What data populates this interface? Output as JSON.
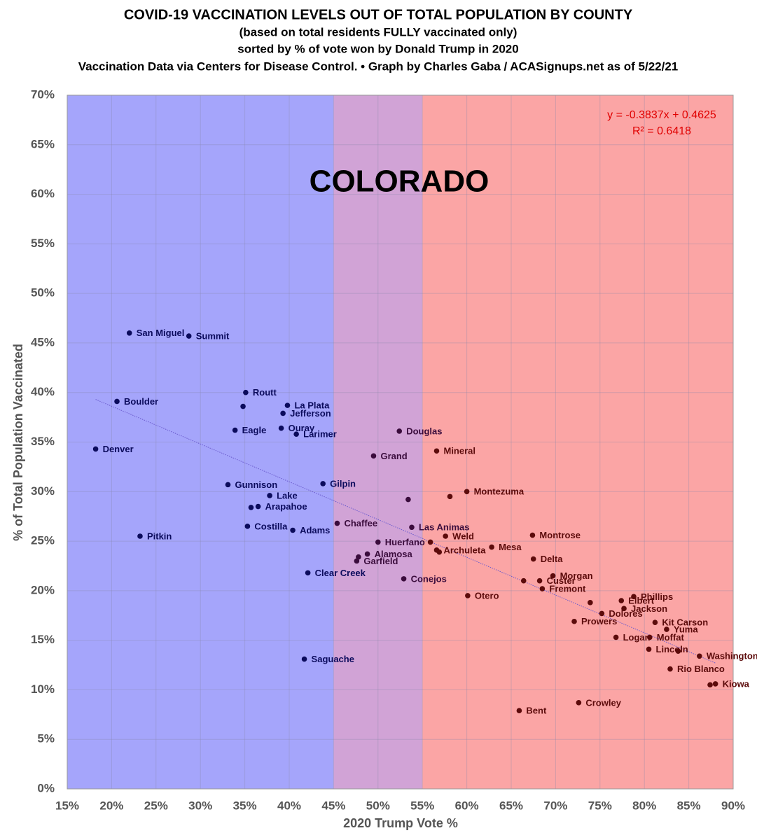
{
  "chart_data": {
    "type": "scatter",
    "title": "COVID-19 VACCINATION LEVELS OUT OF TOTAL POPULATION BY COUNTY",
    "subtitles": [
      "(based on total residents FULLY vaccinated only)",
      "sorted by % of vote won by Donald Trump in 2020",
      "Vaccination Data via Centers for Disease Control. • Graph by Charles Gaba / ACASignups.net as of 5/22/21"
    ],
    "annotation": "COLORADO",
    "equation": [
      "y = -0.3837x + 0.4625",
      "R² = 0.6418"
    ],
    "xlabel": "2020 Trump Vote %",
    "ylabel": "% of Total Population Vaccinated",
    "xlim": [
      15,
      90
    ],
    "ylim": [
      0,
      70
    ],
    "xticks": [
      {
        "value": 15,
        "label": "15%"
      },
      {
        "value": 20,
        "label": "20%"
      },
      {
        "value": 25,
        "label": "25%"
      },
      {
        "value": 30,
        "label": "30%"
      },
      {
        "value": 35,
        "label": "35%"
      },
      {
        "value": 40,
        "label": "40%"
      },
      {
        "value": 45,
        "label": "45%"
      },
      {
        "value": 50,
        "label": "50%"
      },
      {
        "value": 55,
        "label": "55%"
      },
      {
        "value": 60,
        "label": "60%"
      },
      {
        "value": 65,
        "label": "65%"
      },
      {
        "value": 70,
        "label": "70%"
      },
      {
        "value": 75,
        "label": "75%"
      },
      {
        "value": 80,
        "label": "80%"
      },
      {
        "value": 85,
        "label": "85%"
      },
      {
        "value": 90,
        "label": "90%"
      }
    ],
    "yticks": [
      {
        "value": 0,
        "label": "0%"
      },
      {
        "value": 5,
        "label": "5%"
      },
      {
        "value": 10,
        "label": "10%"
      },
      {
        "value": 15,
        "label": "15%"
      },
      {
        "value": 20,
        "label": "20%"
      },
      {
        "value": 25,
        "label": "25%"
      },
      {
        "value": 30,
        "label": "30%"
      },
      {
        "value": 35,
        "label": "35%"
      },
      {
        "value": 40,
        "label": "40%"
      },
      {
        "value": 45,
        "label": "45%"
      },
      {
        "value": 50,
        "label": "50%"
      },
      {
        "value": 55,
        "label": "55%"
      },
      {
        "value": 60,
        "label": "60%"
      },
      {
        "value": 65,
        "label": "65%"
      },
      {
        "value": 70,
        "label": "70%"
      }
    ],
    "grid": true,
    "regions": [
      {
        "from": 15,
        "to": 45,
        "color": "#a5a5fb",
        "mark_color": "#0b0b5c"
      },
      {
        "from": 45,
        "to": 55,
        "color": "#d1a3d6",
        "mark_color": "#3a0c3c"
      },
      {
        "from": 55,
        "to": 90,
        "color": "#fba5a5",
        "mark_color": "#5c0b0b"
      }
    ],
    "trendline": {
      "x": [
        18.2,
        88
      ],
      "y": [
        39.3,
        12.7
      ],
      "color": "#6a5acd"
    },
    "series": [
      {
        "name": "Counties",
        "x": [
          22.0,
          28.7,
          20.6,
          35.1,
          34.8,
          39.8,
          39.3,
          33.9,
          39.1,
          40.8,
          52.4,
          18.2,
          56.6,
          49.5,
          33.1,
          43.8,
          60.0,
          58.1,
          53.4,
          37.8,
          36.5,
          35.7,
          45.4,
          35.3,
          40.4,
          53.8,
          67.4,
          23.2,
          57.6,
          50.0,
          55.9,
          62.8,
          56.6,
          56.9,
          48.8,
          47.8,
          47.6,
          67.5,
          42.1,
          69.7,
          52.9,
          66.4,
          68.2,
          68.5,
          60.1,
          78.8,
          77.4,
          73.9,
          77.7,
          75.2,
          72.1,
          81.2,
          82.5,
          76.8,
          80.6,
          80.5,
          83.8,
          86.2,
          41.7,
          82.9,
          88.0,
          87.4,
          72.6,
          65.9
        ],
        "values": [
          46.0,
          45.7,
          39.1,
          40.0,
          38.6,
          38.7,
          37.9,
          36.2,
          36.4,
          35.8,
          36.1,
          34.3,
          34.1,
          33.6,
          30.7,
          30.8,
          30.0,
          29.5,
          29.2,
          29.6,
          28.5,
          28.4,
          26.8,
          26.5,
          26.1,
          26.4,
          25.6,
          25.5,
          25.5,
          24.9,
          24.9,
          24.4,
          24.1,
          23.9,
          23.7,
          23.4,
          23.0,
          23.2,
          21.8,
          21.5,
          21.2,
          21.0,
          21.0,
          20.2,
          19.5,
          19.4,
          19.0,
          18.8,
          18.2,
          17.7,
          16.9,
          16.8,
          16.1,
          15.3,
          15.3,
          14.1,
          13.9,
          13.4,
          13.1,
          12.1,
          10.6,
          10.5,
          8.7,
          7.9
        ],
        "labels": [
          "San Miguel",
          "Summit",
          "Boulder",
          "Routt",
          null,
          "La Plata",
          "Jefferson",
          "Eagle",
          "Ouray",
          "Larimer",
          "Douglas",
          "Denver",
          "Mineral",
          "Grand",
          "Gunnison",
          "Gilpin",
          "Montezuma",
          null,
          null,
          "Lake",
          "Arapahoe",
          null,
          "Chaffee",
          "Costilla",
          "Adams",
          "Las Animas",
          "Montrose",
          "Pitkin",
          "Weld",
          "Huerfano",
          null,
          "Mesa",
          "Archuleta",
          null,
          "Alamosa",
          null,
          "Garfield",
          "Delta",
          "Clear Creek",
          "Morgan",
          "Conejos",
          null,
          "Custer",
          "Fremont",
          "Otero",
          "Phillips",
          "Elbert",
          null,
          "Jackson",
          "Dolores",
          "Prowers",
          "Kit Carson",
          "Yuma",
          "Logan",
          "Moffat",
          "Lincoln",
          null,
          "Washington",
          "Saguache",
          "Rio Blanco",
          "Kiowa",
          null,
          "Crowley",
          "Bent"
        ]
      }
    ]
  }
}
